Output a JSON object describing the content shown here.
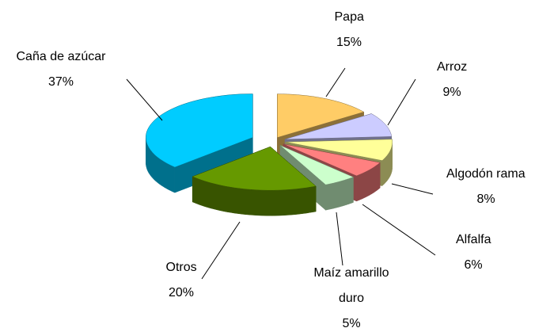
{
  "chart_data": {
    "type": "pie",
    "categories": [
      "Papa",
      "Arroz",
      "Algodón rama",
      "Alfalfa",
      "Maíz amarillo duro",
      "Otros",
      "Caña de azúcar"
    ],
    "values": [
      15,
      9,
      8,
      6,
      5,
      20,
      37
    ],
    "value_labels": [
      "15%",
      "9%",
      "8%",
      "6%",
      "5%",
      "20%",
      "37%"
    ],
    "colors": [
      "#ffcc66",
      "#ccccff",
      "#ffff99",
      "#ff8080",
      "#ccffcc",
      "#669900",
      "#00ccff"
    ]
  }
}
